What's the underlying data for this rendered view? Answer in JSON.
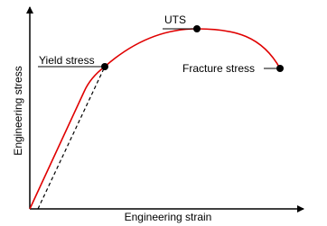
{
  "axes": {
    "x": "Engineering strain",
    "y": "Engineering stress"
  },
  "points": {
    "yield": "Yield stress",
    "uts": "UTS",
    "fracture": "Fracture stress"
  }
}
